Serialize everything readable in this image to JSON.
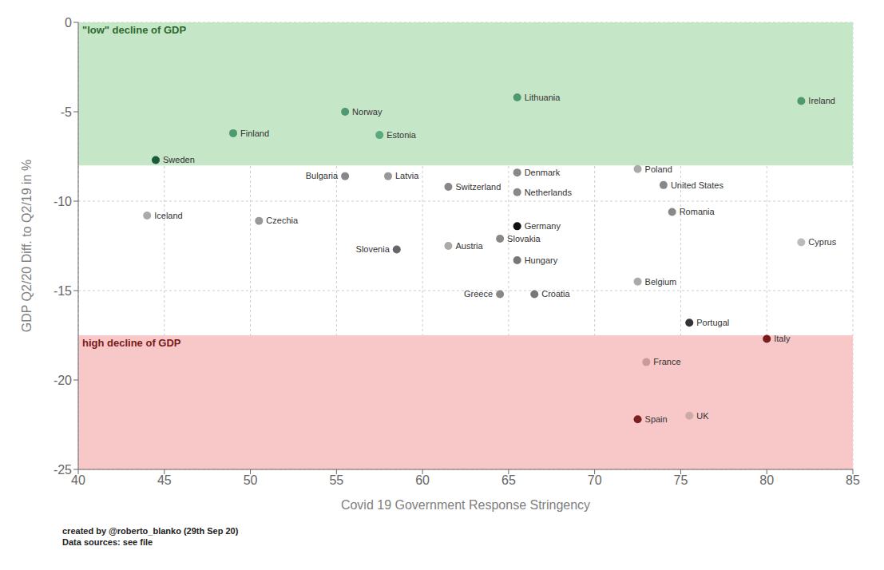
{
  "chart_data": {
    "type": "scatter",
    "xlabel": "Covid 19 Government Response Stringency",
    "ylabel": "GDP Q2/20 Diff. to Q2/19 in %",
    "xlim": [
      40,
      85
    ],
    "ylim": [
      -25,
      0
    ],
    "xticks": [
      40,
      45,
      50,
      55,
      60,
      65,
      70,
      75,
      80,
      85
    ],
    "yticks": [
      0,
      -5,
      -10,
      -15,
      -20,
      -25
    ],
    "grid": true,
    "labels": [
      "Sweden",
      "Finland",
      "Norway",
      "Estonia",
      "Lithuania",
      "Ireland",
      "Iceland",
      "Bulgaria",
      "Latvia",
      "Switzerland",
      "Denmark",
      "Netherlands",
      "Czechia",
      "Poland",
      "United States",
      "Romania",
      "Slovenia",
      "Austria",
      "Germany",
      "Slovakia",
      "Hungary",
      "Belgium",
      "Greece",
      "Croatia",
      "Cyprus",
      "Portugal",
      "Italy",
      "France",
      "UK",
      "Spain"
    ],
    "x": [
      44.5,
      49.0,
      55.5,
      57.5,
      65.5,
      82.0,
      44.0,
      55.5,
      58.0,
      61.5,
      65.5,
      65.5,
      50.5,
      72.5,
      74.0,
      74.5,
      58.5,
      61.5,
      65.5,
      64.5,
      65.5,
      72.5,
      64.5,
      66.5,
      82.0,
      75.5,
      80.0,
      73.0,
      75.5,
      72.5
    ],
    "values": [
      -7.7,
      -6.2,
      -5.0,
      -6.3,
      -4.2,
      -4.4,
      -10.8,
      -8.6,
      -8.6,
      -9.2,
      -8.4,
      -9.5,
      -11.1,
      -8.2,
      -9.1,
      -10.6,
      -12.7,
      -12.5,
      -11.4,
      -12.1,
      -13.3,
      -14.5,
      -15.2,
      -15.2,
      -12.3,
      -16.8,
      -17.7,
      -19.0,
      -22.0,
      -22.2
    ],
    "colors": [
      "#1a5c3a",
      "#4d9970",
      "#4d9970",
      "#5aaa80",
      "#4d9970",
      "#4d9970",
      "#aaaaaa",
      "#888888",
      "#999999",
      "#888888",
      "#888888",
      "#888888",
      "#999999",
      "#aaaaaa",
      "#888888",
      "#888888",
      "#666666",
      "#aaaaaa",
      "#111111",
      "#888888",
      "#777777",
      "#aaaaaa",
      "#888888",
      "#777777",
      "#bbbbbb",
      "#333333",
      "#7a1a1a",
      "#cc9999",
      "#ccaaaa",
      "#7a2020"
    ],
    "zones": [
      {
        "from": -8.0,
        "to": 0,
        "color": "#c6e6c8",
        "label": "\"low\" decline of GDP",
        "label_color": "#2d6a2d"
      },
      {
        "from": -25,
        "to": -17.5,
        "color": "#f8c8c8",
        "label": "high decline of GDP",
        "label_color": "#7a1a1a"
      }
    ],
    "footer": [
      "created by @roberto_blanko (29th Sep 20)",
      "Data sources: see file"
    ]
  }
}
